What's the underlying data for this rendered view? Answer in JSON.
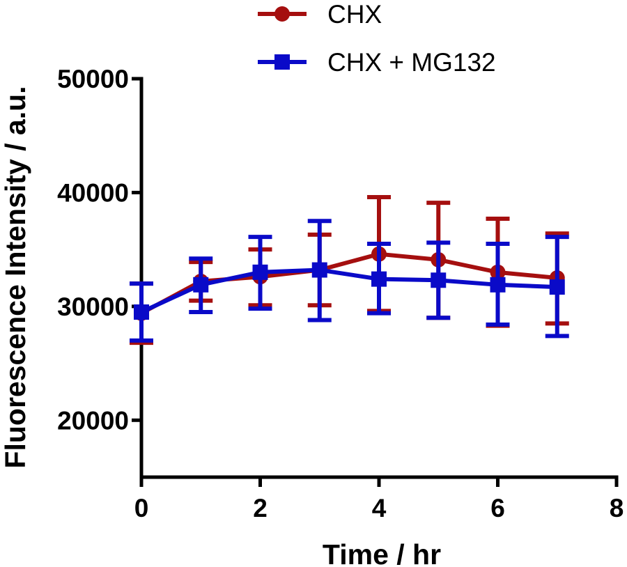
{
  "chart_data": {
    "type": "line",
    "xlabel": "Time / hr",
    "ylabel": "Fluorescence Intensity / a.u.",
    "xlim": [
      0,
      8
    ],
    "ylim": [
      15000,
      50000
    ],
    "xticks": [
      0,
      2,
      4,
      6,
      8
    ],
    "yticks": [
      20000,
      30000,
      40000,
      50000
    ],
    "xtick_labels": [
      "0",
      "2",
      "4",
      "6",
      "8"
    ],
    "ytick_labels": [
      "20000",
      "30000",
      "40000",
      "50000"
    ],
    "grid": false,
    "legend_position": "top",
    "x": [
      0,
      1,
      2,
      3,
      4,
      5,
      6,
      7
    ],
    "series": [
      {
        "name": "CHX",
        "color": "#A50F0F",
        "marker": "circle",
        "values": [
          29400,
          32200,
          32600,
          33200,
          34600,
          34100,
          33000,
          32500
        ],
        "err_low": [
          26800,
          30500,
          30100,
          30100,
          29600,
          29000,
          28300,
          28500
        ],
        "err_high": [
          32000,
          33900,
          35000,
          36300,
          39600,
          39100,
          37700,
          36400
        ]
      },
      {
        "name": "CHX + MG132",
        "color": "#0A0AC8",
        "marker": "square",
        "values": [
          29500,
          31900,
          33000,
          33200,
          32400,
          32300,
          31900,
          31700
        ],
        "err_low": [
          27000,
          29500,
          29800,
          28800,
          29400,
          29000,
          28400,
          27400
        ],
        "err_high": [
          32000,
          34200,
          36100,
          37500,
          35500,
          35600,
          35500,
          36100
        ]
      }
    ]
  }
}
